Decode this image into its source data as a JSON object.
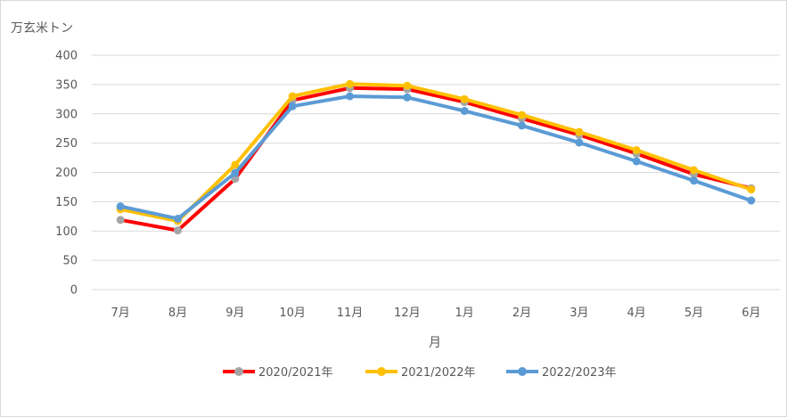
{
  "chart_data": {
    "type": "line",
    "title": "",
    "ylabel": "万玄米トン",
    "xlabel": "月",
    "categories": [
      "7月",
      "8月",
      "9月",
      "10月",
      "11月",
      "12月",
      "1月",
      "2月",
      "3月",
      "4月",
      "5月",
      "6月"
    ],
    "ylim": [
      0,
      400
    ],
    "yticks": [
      0,
      50,
      100,
      150,
      200,
      250,
      300,
      350,
      400
    ],
    "grid": true,
    "legend_position": "bottom",
    "series": [
      {
        "name": "2020/2021年",
        "line_color": "#ff0000",
        "marker_color": "#a5a5a5",
        "values": [
          119,
          101,
          189,
          323,
          344,
          342,
          320,
          292,
          264,
          232,
          197,
          173
        ]
      },
      {
        "name": "2021/2022年",
        "line_color": "#ffc000",
        "marker_color": "#ffc000",
        "values": [
          137,
          117,
          213,
          330,
          351,
          348,
          325,
          298,
          269,
          238,
          204,
          171
        ]
      },
      {
        "name": "2022/2023年",
        "line_color": "#5b9bd5",
        "marker_color": "#5b9bd5",
        "values": [
          142,
          121,
          199,
          313,
          330,
          328,
          305,
          280,
          251,
          219,
          186,
          152
        ]
      }
    ]
  }
}
